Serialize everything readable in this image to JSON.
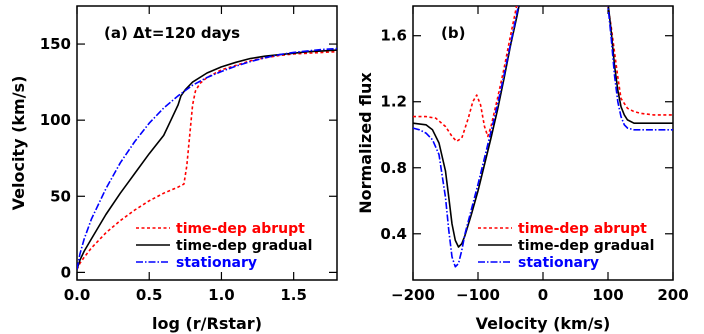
{
  "chart_data": [
    {
      "type": "line",
      "title": "(a) Δt=120 days",
      "xlabel": "log (r/Rstar)",
      "ylabel": "Velocity (km/s)",
      "xlim": [
        0.0,
        1.8
      ],
      "ylim": [
        -5,
        175
      ],
      "xticks": [
        "0.0",
        "0.5",
        "1.0",
        "1.5"
      ],
      "xtick_values": [
        0.0,
        0.5,
        1.0,
        1.5
      ],
      "yticks": [
        "0",
        "50",
        "100",
        "150"
      ],
      "ytick_values": [
        0,
        50,
        100,
        150
      ],
      "legend_position": "bottom-right",
      "grid": false,
      "series": [
        {
          "name": "time-dep abrupt",
          "color": "#ff0000",
          "style": "dotted",
          "x": [
            0.0,
            0.02,
            0.05,
            0.1,
            0.2,
            0.3,
            0.4,
            0.5,
            0.6,
            0.7,
            0.74,
            0.76,
            0.78,
            0.8,
            0.82,
            0.85,
            0.9,
            1.0,
            1.1,
            1.2,
            1.3,
            1.4,
            1.5,
            1.6,
            1.7,
            1.8
          ],
          "y": [
            2,
            6,
            10,
            16,
            26,
            34,
            41,
            47,
            52,
            56,
            58,
            70,
            90,
            110,
            119,
            124,
            128,
            133,
            136,
            139,
            141,
            142.5,
            143.5,
            144,
            144.5,
            145
          ]
        },
        {
          "name": "time-dep gradual",
          "color": "#000000",
          "style": "solid",
          "x": [
            0.0,
            0.02,
            0.05,
            0.1,
            0.2,
            0.3,
            0.4,
            0.5,
            0.6,
            0.65,
            0.7,
            0.72,
            0.75,
            0.8,
            0.9,
            1.0,
            1.1,
            1.2,
            1.3,
            1.4,
            1.5,
            1.6,
            1.7,
            1.8
          ],
          "y": [
            2,
            8,
            14,
            22,
            38,
            52,
            65,
            78,
            90,
            100,
            110,
            116,
            120,
            125,
            131,
            135,
            138,
            140.5,
            142,
            143,
            144,
            145,
            145.5,
            146
          ]
        },
        {
          "name": "stationary",
          "color": "#0000ff",
          "style": "dash-dot",
          "x": [
            0.0,
            0.02,
            0.05,
            0.1,
            0.2,
            0.3,
            0.4,
            0.5,
            0.6,
            0.7,
            0.8,
            0.9,
            1.0,
            1.1,
            1.2,
            1.3,
            1.4,
            1.5,
            1.6,
            1.7,
            1.8
          ],
          "y": [
            2,
            12,
            22,
            35,
            55,
            72,
            86,
            98,
            108,
            116,
            123,
            128,
            132,
            135.5,
            138.5,
            141,
            143,
            144.5,
            145.5,
            146.5,
            147
          ]
        }
      ]
    },
    {
      "type": "line",
      "title": "(b)",
      "xlabel": "Velocity (km/s)",
      "ylabel": "Normalized flux",
      "xlim": [
        -200,
        200
      ],
      "ylim": [
        0.12,
        1.78
      ],
      "xticks": [
        "−200",
        "−100",
        "0",
        "100",
        "200"
      ],
      "xtick_values": [
        -200,
        -100,
        0,
        100,
        200
      ],
      "yticks": [
        "0.4",
        "0.8",
        "1.2",
        "1.6"
      ],
      "ytick_values": [
        0.4,
        0.8,
        1.2,
        1.6
      ],
      "legend_position": "bottom-right",
      "grid": false,
      "series": [
        {
          "name": "time-dep abrupt",
          "color": "#ff0000",
          "style": "dotted",
          "x": [
            -200,
            -180,
            -165,
            -150,
            -140,
            -133,
            -125,
            -115,
            -108,
            -102,
            -96,
            -90,
            -85,
            -80,
            -70,
            -60,
            -50,
            -40,
            -35,
            -30,
            90,
            95,
            100,
            105,
            110,
            115,
            120,
            130,
            140,
            150,
            170,
            200
          ],
          "y": [
            1.11,
            1.11,
            1.1,
            1.05,
            0.99,
            0.96,
            0.98,
            1.1,
            1.2,
            1.24,
            1.18,
            1.05,
            0.99,
            1.05,
            1.22,
            1.4,
            1.6,
            1.79,
            1.85,
            1.9,
            1.9,
            1.85,
            1.78,
            1.65,
            1.5,
            1.35,
            1.22,
            1.16,
            1.14,
            1.13,
            1.12,
            1.12
          ]
        },
        {
          "name": "time-dep gradual",
          "color": "#000000",
          "style": "solid",
          "x": [
            -200,
            -180,
            -170,
            -160,
            -150,
            -145,
            -140,
            -135,
            -130,
            -125,
            -120,
            -110,
            -100,
            -90,
            -80,
            -70,
            -60,
            -50,
            -40,
            -35,
            -30,
            95,
            100,
            105,
            110,
            115,
            120,
            125,
            130,
            140,
            150,
            160,
            170,
            200
          ],
          "y": [
            1.07,
            1.06,
            1.03,
            0.95,
            0.78,
            0.62,
            0.46,
            0.36,
            0.32,
            0.34,
            0.39,
            0.52,
            0.66,
            0.82,
            0.98,
            1.15,
            1.34,
            1.54,
            1.72,
            1.82,
            1.9,
            1.9,
            1.8,
            1.62,
            1.42,
            1.27,
            1.17,
            1.12,
            1.09,
            1.07,
            1.07,
            1.07,
            1.07,
            1.07
          ]
        },
        {
          "name": "stationary",
          "color": "#0000ff",
          "style": "dash-dot",
          "x": [
            -200,
            -190,
            -180,
            -170,
            -160,
            -150,
            -145,
            -140,
            -135,
            -130,
            -125,
            -120,
            -110,
            -100,
            -90,
            -80,
            -70,
            -60,
            -50,
            -40,
            -35,
            -30,
            95,
            100,
            105,
            110,
            115,
            120,
            125,
            130,
            140,
            150,
            170,
            200
          ],
          "y": [
            1.04,
            1.03,
            1.01,
            0.97,
            0.88,
            0.62,
            0.42,
            0.26,
            0.2,
            0.22,
            0.3,
            0.4,
            0.55,
            0.7,
            0.86,
            1.02,
            1.18,
            1.36,
            1.55,
            1.74,
            1.84,
            1.9,
            1.9,
            1.78,
            1.58,
            1.36,
            1.2,
            1.11,
            1.06,
            1.04,
            1.03,
            1.03,
            1.03,
            1.03
          ]
        }
      ]
    }
  ]
}
